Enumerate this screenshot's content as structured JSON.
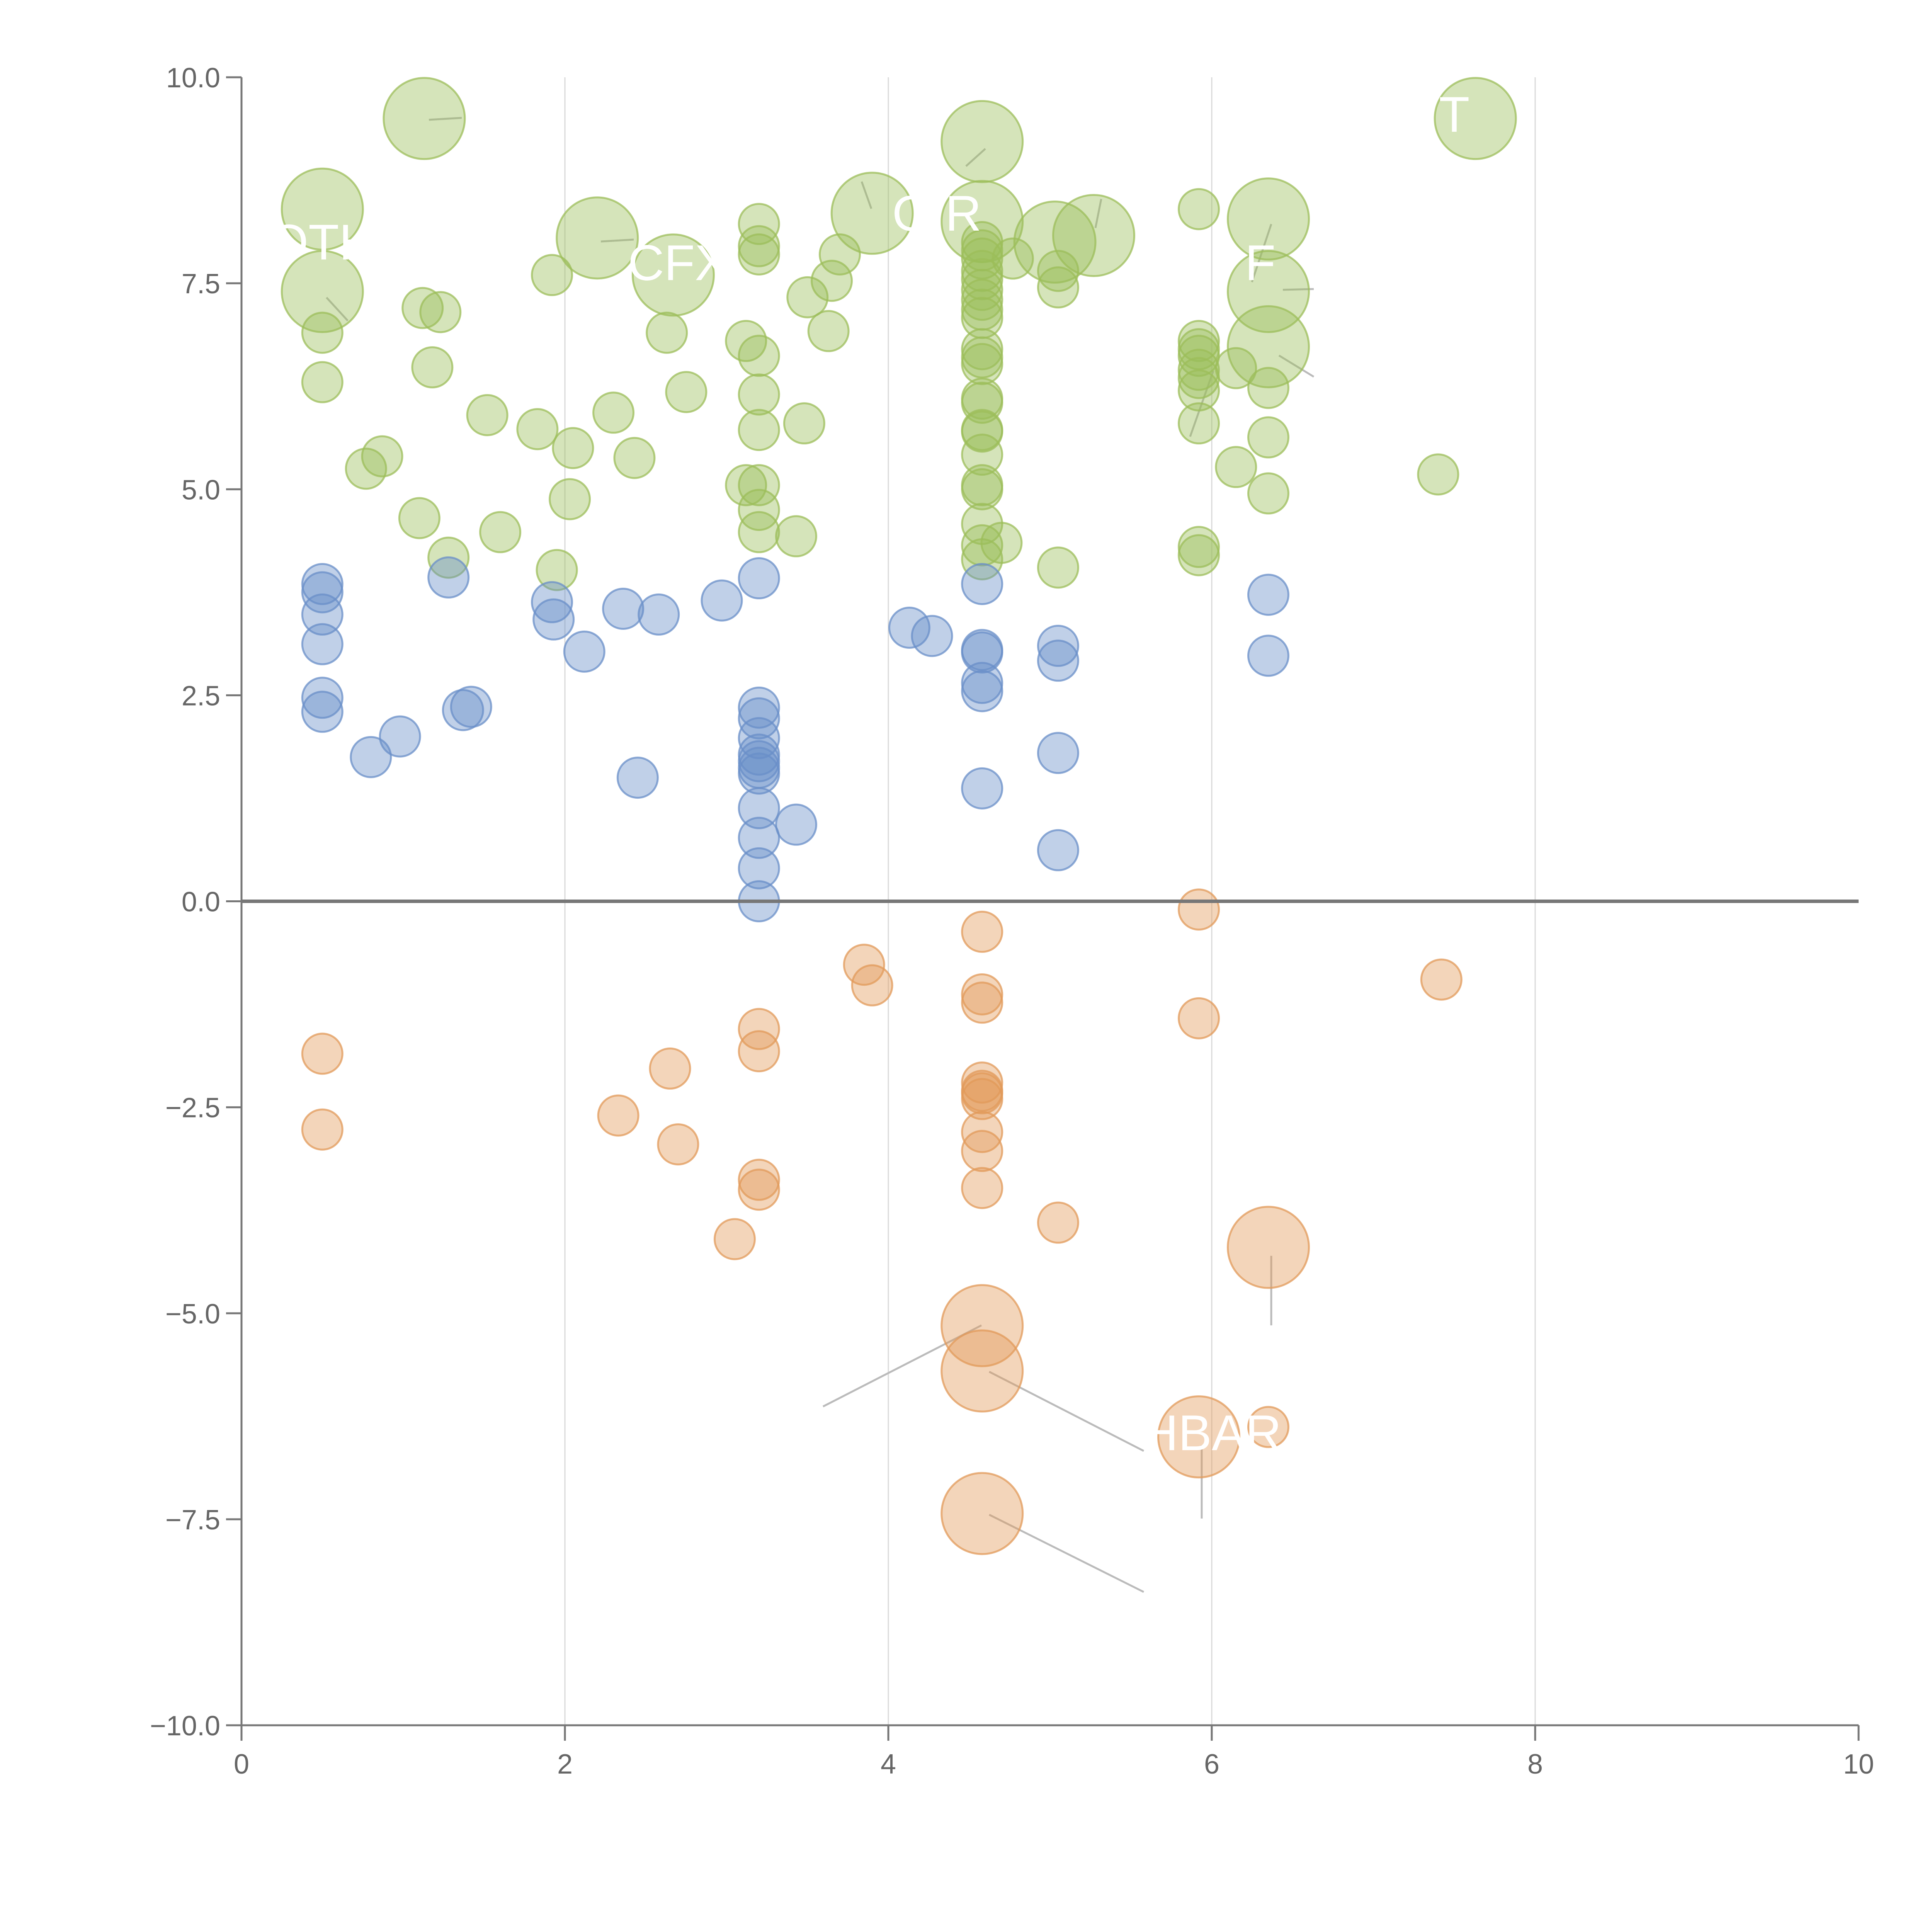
{
  "chart_data": {
    "type": "scatter",
    "subtype": "bubble",
    "title": "",
    "xlabel": "",
    "ylabel": "",
    "xlim": [
      0,
      10
    ],
    "ylim": [
      -10,
      10
    ],
    "grid": "vertical",
    "x_ticks": [
      "0",
      "2",
      "4",
      "6",
      "8",
      "10"
    ],
    "y_ticks": [
      "−10.0",
      "−7.5",
      "−5.0",
      "−2.5",
      "0.0",
      "2.5",
      "5.0",
      "7.5",
      "10.0"
    ],
    "colors": {
      "green": "#9cbe5a",
      "blue": "#6a8fc8",
      "orange": "#e29a5a",
      "axis": "#777777",
      "zero_line": "#777777",
      "grid": "#d9d9d9",
      "leader": "#bbbbbb"
    },
    "series": [
      {
        "name": "green",
        "color": "#9cbe5a",
        "points": [
          [
            0.5,
            8.4,
            3
          ],
          [
            0.5,
            7.4,
            3
          ],
          [
            0.5,
            6.9,
            1
          ],
          [
            0.5,
            6.3,
            1
          ],
          [
            0.77,
            5.25,
            1
          ],
          [
            0.87,
            5.4,
            1
          ],
          [
            1.1,
            4.65,
            1
          ],
          [
            1.12,
            7.2,
            1
          ],
          [
            1.13,
            9.5,
            3
          ],
          [
            1.18,
            6.48,
            1
          ],
          [
            1.23,
            7.15,
            1
          ],
          [
            1.28,
            4.17,
            1
          ],
          [
            1.52,
            5.9,
            1
          ],
          [
            1.6,
            4.48,
            1
          ],
          [
            1.83,
            5.73,
            1
          ],
          [
            1.92,
            7.6,
            1
          ],
          [
            1.95,
            4.02,
            1
          ],
          [
            2.03,
            4.88,
            1
          ],
          [
            2.05,
            5.5,
            1
          ],
          [
            2.2,
            8.05,
            3
          ],
          [
            2.3,
            5.93,
            1
          ],
          [
            2.43,
            5.38,
            1
          ],
          [
            2.63,
            6.9,
            1
          ],
          [
            2.67,
            7.6,
            3
          ],
          [
            2.75,
            6.18,
            1
          ],
          [
            3.12,
            6.8,
            1
          ],
          [
            3.12,
            5.05,
            1
          ],
          [
            3.2,
            8.22,
            1
          ],
          [
            3.2,
            7.95,
            1
          ],
          [
            3.2,
            7.85,
            1
          ],
          [
            3.2,
            6.62,
            1
          ],
          [
            3.2,
            6.15,
            1
          ],
          [
            3.2,
            5.72,
            1
          ],
          [
            3.2,
            5.05,
            1
          ],
          [
            3.2,
            4.75,
            1
          ],
          [
            3.2,
            4.48,
            1
          ],
          [
            3.43,
            4.43,
            1
          ],
          [
            3.48,
            5.8,
            1
          ],
          [
            3.5,
            7.33,
            1
          ],
          [
            3.63,
            6.92,
            1
          ],
          [
            3.65,
            7.53,
            1
          ],
          [
            3.7,
            7.85,
            1
          ],
          [
            3.9,
            8.35,
            3
          ],
          [
            4.58,
            9.22,
            3
          ],
          [
            4.58,
            8.25,
            3
          ],
          [
            4.58,
            8.0,
            1
          ],
          [
            4.58,
            7.9,
            1
          ],
          [
            4.58,
            7.8,
            1
          ],
          [
            4.58,
            7.65,
            1
          ],
          [
            4.58,
            7.55,
            1
          ],
          [
            4.58,
            7.42,
            1
          ],
          [
            4.58,
            7.3,
            1
          ],
          [
            4.58,
            7.18,
            1
          ],
          [
            4.58,
            7.08,
            1
          ],
          [
            4.58,
            6.7,
            1
          ],
          [
            4.58,
            6.6,
            1
          ],
          [
            4.58,
            6.52,
            1
          ],
          [
            4.58,
            6.1,
            1
          ],
          [
            4.58,
            6.05,
            1
          ],
          [
            4.58,
            5.72,
            1
          ],
          [
            4.58,
            5.7,
            1
          ],
          [
            4.58,
            5.42,
            1
          ],
          [
            4.58,
            5.05,
            1
          ],
          [
            4.58,
            5.0,
            1
          ],
          [
            4.58,
            4.58,
            1
          ],
          [
            4.58,
            4.32,
            1
          ],
          [
            4.58,
            4.15,
            1
          ],
          [
            4.7,
            4.35,
            1
          ],
          [
            4.77,
            7.8,
            1
          ],
          [
            5.03,
            8.0,
            3
          ],
          [
            5.05,
            7.65,
            1
          ],
          [
            5.05,
            7.45,
            1
          ],
          [
            5.05,
            4.05,
            1
          ],
          [
            5.27,
            8.08,
            3
          ],
          [
            5.92,
            8.4,
            1
          ],
          [
            5.92,
            6.8,
            1
          ],
          [
            5.92,
            6.7,
            1
          ],
          [
            5.92,
            6.62,
            1
          ],
          [
            5.92,
            6.45,
            1
          ],
          [
            5.92,
            6.35,
            1
          ],
          [
            5.92,
            6.2,
            1
          ],
          [
            5.92,
            5.8,
            1
          ],
          [
            5.92,
            4.3,
            1
          ],
          [
            5.92,
            4.2,
            1
          ],
          [
            6.15,
            5.27,
            1
          ],
          [
            6.15,
            6.47,
            1
          ],
          [
            6.35,
            8.28,
            3
          ],
          [
            6.35,
            7.4,
            3
          ],
          [
            6.35,
            6.73,
            3
          ],
          [
            6.35,
            6.23,
            1
          ],
          [
            6.35,
            5.63,
            1
          ],
          [
            6.35,
            4.95,
            1
          ],
          [
            7.4,
            5.18,
            1
          ],
          [
            7.63,
            9.5,
            3
          ]
        ]
      },
      {
        "name": "blue",
        "color": "#6a8fc8",
        "points": [
          [
            0.5,
            3.85,
            1
          ],
          [
            0.5,
            3.75,
            1
          ],
          [
            0.5,
            3.48,
            1
          ],
          [
            0.5,
            3.12,
            1
          ],
          [
            0.5,
            2.47,
            1
          ],
          [
            0.5,
            2.3,
            1
          ],
          [
            0.8,
            1.75,
            1
          ],
          [
            0.98,
            2.0,
            1
          ],
          [
            1.28,
            3.93,
            1
          ],
          [
            1.37,
            2.32,
            1
          ],
          [
            1.42,
            2.36,
            1
          ],
          [
            1.92,
            3.63,
            1
          ],
          [
            1.93,
            3.42,
            1
          ],
          [
            2.12,
            3.03,
            1
          ],
          [
            2.36,
            3.55,
            1
          ],
          [
            2.45,
            1.5,
            1
          ],
          [
            2.58,
            3.48,
            1
          ],
          [
            2.97,
            3.65,
            1
          ],
          [
            3.2,
            3.92,
            1
          ],
          [
            3.2,
            2.35,
            1
          ],
          [
            3.2,
            2.22,
            1
          ],
          [
            3.2,
            1.98,
            1
          ],
          [
            3.2,
            1.78,
            1
          ],
          [
            3.2,
            1.7,
            1
          ],
          [
            3.2,
            1.62,
            1
          ],
          [
            3.2,
            1.55,
            1
          ],
          [
            3.2,
            1.13,
            1
          ],
          [
            3.2,
            0.77,
            1
          ],
          [
            3.2,
            0.4,
            1
          ],
          [
            3.2,
            0.0,
            1
          ],
          [
            3.43,
            0.93,
            1
          ],
          [
            4.13,
            3.32,
            1
          ],
          [
            4.27,
            3.22,
            1
          ],
          [
            4.58,
            3.85,
            1
          ],
          [
            4.58,
            3.05,
            1
          ],
          [
            4.58,
            3.02,
            1
          ],
          [
            4.58,
            2.65,
            1
          ],
          [
            4.58,
            2.55,
            1
          ],
          [
            4.58,
            1.37,
            1
          ],
          [
            5.05,
            3.1,
            1
          ],
          [
            5.05,
            2.92,
            1
          ],
          [
            5.05,
            1.8,
            1
          ],
          [
            5.05,
            0.62,
            1
          ],
          [
            6.35,
            3.72,
            1
          ],
          [
            6.35,
            2.98,
            1
          ]
        ]
      },
      {
        "name": "orange",
        "color": "#e29a5a",
        "points": [
          [
            0.5,
            -1.85,
            1
          ],
          [
            0.5,
            -2.77,
            1
          ],
          [
            2.33,
            -2.6,
            1
          ],
          [
            2.65,
            -2.03,
            1
          ],
          [
            2.7,
            -2.95,
            1
          ],
          [
            3.05,
            -4.1,
            1
          ],
          [
            3.2,
            -1.55,
            1
          ],
          [
            3.2,
            -1.82,
            1
          ],
          [
            3.2,
            -3.38,
            1
          ],
          [
            3.2,
            -3.5,
            1
          ],
          [
            3.85,
            -0.77,
            1
          ],
          [
            3.9,
            -1.02,
            1
          ],
          [
            4.58,
            -0.37,
            1
          ],
          [
            4.58,
            -1.13,
            1
          ],
          [
            4.58,
            -1.23,
            1
          ],
          [
            4.58,
            -2.2,
            1
          ],
          [
            4.58,
            -2.3,
            1
          ],
          [
            4.58,
            -2.33,
            1
          ],
          [
            4.58,
            -2.4,
            1
          ],
          [
            4.58,
            -2.8,
            1
          ],
          [
            4.58,
            -3.03,
            1
          ],
          [
            4.58,
            -3.48,
            1
          ],
          [
            4.58,
            -5.15,
            3
          ],
          [
            4.58,
            -5.7,
            3
          ],
          [
            4.58,
            -7.43,
            3
          ],
          [
            5.05,
            -3.9,
            1
          ],
          [
            5.92,
            -0.1,
            1
          ],
          [
            5.92,
            -1.42,
            1
          ],
          [
            5.92,
            -6.5,
            3
          ],
          [
            6.35,
            -4.2,
            3
          ],
          [
            6.35,
            -6.38,
            1
          ],
          [
            7.42,
            -0.95,
            1
          ]
        ]
      }
    ],
    "annotations": [
      {
        "text": "OTH",
        "near": [
          0.5,
          8.0
        ]
      },
      {
        "text": "CFX",
        "near": [
          2.7,
          7.75
        ]
      },
      {
        "text": "OIR",
        "near": [
          4.3,
          8.35
        ]
      },
      {
        "text": "T",
        "near": [
          7.5,
          9.55
        ]
      },
      {
        "text": "F",
        "near": [
          6.3,
          7.75
        ]
      },
      {
        "text": "HBAR",
        "near": [
          6.0,
          -6.45
        ]
      }
    ]
  }
}
